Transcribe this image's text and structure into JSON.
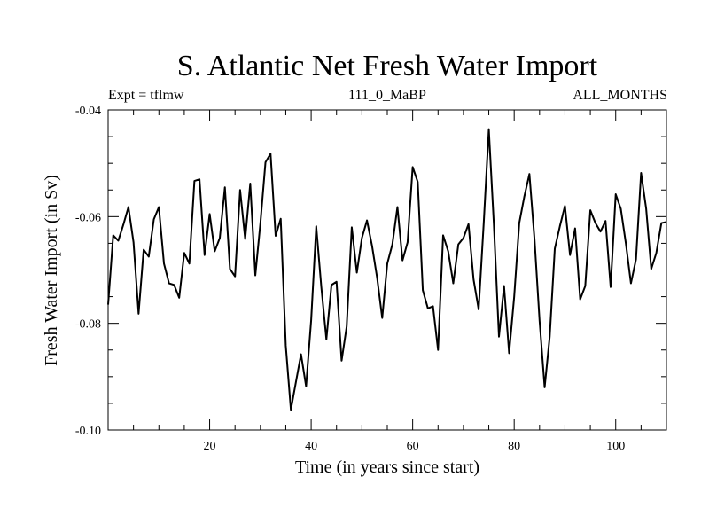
{
  "chart_data": {
    "type": "line",
    "title": "S. Atlantic Net Fresh Water Import",
    "subtitle_left": "Expt = tflmw",
    "subtitle_center": "111_0_MaBP",
    "subtitle_right": "ALL_MONTHS",
    "xlabel": "Time (in years since start)",
    "ylabel": "Fresh Water Import (in Sv)",
    "xlim": [
      0,
      110
    ],
    "ylim": [
      -0.1,
      -0.04
    ],
    "x_ticks": [
      20,
      40,
      60,
      80,
      100
    ],
    "x_tick_labels": [
      "20",
      "40",
      "60",
      "80",
      "100"
    ],
    "y_ticks": [
      -0.1,
      -0.08,
      -0.06,
      -0.04
    ],
    "y_tick_labels": [
      "-0.10",
      "-0.08",
      "-0.06",
      "-0.04"
    ],
    "grid": false,
    "legend": "none",
    "line_color": "#000000",
    "series": [
      {
        "name": "fresh_water_import",
        "x": [
          0,
          1,
          2,
          3,
          4,
          5,
          6,
          7,
          8,
          9,
          10,
          11,
          12,
          13,
          14,
          15,
          16,
          17,
          18,
          19,
          20,
          21,
          22,
          23,
          24,
          25,
          26,
          27,
          28,
          29,
          30,
          31,
          32,
          33,
          34,
          35,
          36,
          37,
          38,
          39,
          40,
          41,
          42,
          43,
          44,
          45,
          46,
          47,
          48,
          49,
          50,
          51,
          52,
          53,
          54,
          55,
          56,
          57,
          58,
          59,
          60,
          61,
          62,
          63,
          64,
          65,
          66,
          67,
          68,
          69,
          70,
          71,
          72,
          73,
          74,
          75,
          76,
          77,
          78,
          79,
          80,
          81,
          82,
          83,
          84,
          85,
          86,
          87,
          88,
          89,
          90,
          91,
          92,
          93,
          94,
          95,
          96,
          97,
          98,
          99,
          100,
          101,
          102,
          103,
          104,
          105,
          106,
          107,
          108,
          109,
          110
        ],
        "values": [
          -0.0765,
          -0.0635,
          -0.0645,
          -0.0615,
          -0.0582,
          -0.0648,
          -0.0782,
          -0.0662,
          -0.0675,
          -0.0605,
          -0.0582,
          -0.0688,
          -0.0725,
          -0.0728,
          -0.0752,
          -0.0668,
          -0.0688,
          -0.0533,
          -0.053,
          -0.0672,
          -0.0595,
          -0.0665,
          -0.064,
          -0.0545,
          -0.0698,
          -0.0712,
          -0.055,
          -0.0642,
          -0.0538,
          -0.071,
          -0.0612,
          -0.0498,
          -0.0482,
          -0.0636,
          -0.0604,
          -0.0842,
          -0.0962,
          -0.091,
          -0.0858,
          -0.0918,
          -0.0794,
          -0.0618,
          -0.0732,
          -0.083,
          -0.0728,
          -0.0722,
          -0.087,
          -0.0806,
          -0.062,
          -0.0705,
          -0.064,
          -0.0607,
          -0.0655,
          -0.0715,
          -0.079,
          -0.0688,
          -0.0652,
          -0.0582,
          -0.0682,
          -0.0648,
          -0.0507,
          -0.0535,
          -0.0738,
          -0.0772,
          -0.0768,
          -0.085,
          -0.0635,
          -0.0665,
          -0.0725,
          -0.0652,
          -0.064,
          -0.0614,
          -0.0718,
          -0.0774,
          -0.0612,
          -0.0436,
          -0.0615,
          -0.0825,
          -0.073,
          -0.0856,
          -0.075,
          -0.0612,
          -0.0562,
          -0.052,
          -0.0642,
          -0.0795,
          -0.092,
          -0.0825,
          -0.066,
          -0.0618,
          -0.058,
          -0.0672,
          -0.0622,
          -0.0755,
          -0.073,
          -0.0588,
          -0.0612,
          -0.0628,
          -0.0608,
          -0.0732,
          -0.0558,
          -0.0585,
          -0.065,
          -0.0725,
          -0.068,
          -0.0518,
          -0.0585,
          -0.0698,
          -0.0668,
          -0.0612,
          -0.061
        ]
      }
    ]
  }
}
